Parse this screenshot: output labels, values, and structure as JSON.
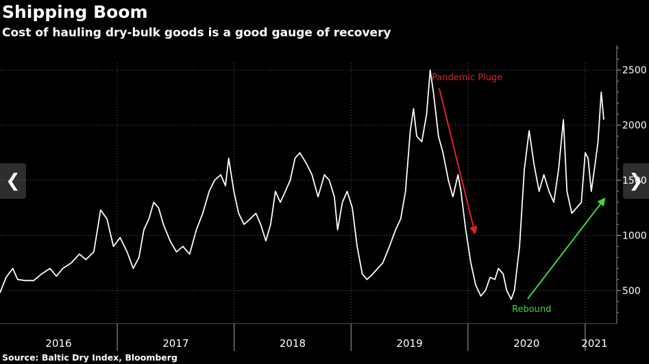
{
  "header": {
    "title": "Shipping Boom",
    "subtitle": "Cost of hauling dry-bulk goods is a good gauge of recovery"
  },
  "footer": {
    "source": "Source: Baltic Dry Index, Bloomberg"
  },
  "nav": {
    "prev_icon": "chevron-left-icon",
    "next_icon": "chevron-right-icon"
  },
  "colors": {
    "background": "#000000",
    "line": "#ffffff",
    "grid": "#666666",
    "pandemic_arrow": "#e0212b",
    "rebound_arrow": "#3fd83f"
  },
  "chart_data": {
    "type": "line",
    "title": "Shipping Boom",
    "subtitle": "Cost of hauling dry-bulk goods is a good gauge of recovery",
    "x_axis": {
      "ticks": [
        "2016",
        "2017",
        "2018",
        "2019",
        "2020",
        "2021"
      ],
      "range": [
        "2016-01-01",
        "2021-02-28"
      ]
    },
    "y_axis": {
      "ticks": [
        500,
        1000,
        1500,
        2000,
        2500
      ],
      "range": [
        200,
        2750
      ],
      "position": "right"
    },
    "grid": true,
    "series": [
      {
        "values": [
          [
            "2016-01-01",
            480
          ],
          [
            "2016-01-20",
            620
          ],
          [
            "2016-02-10",
            700
          ],
          [
            "2016-02-25",
            600
          ],
          [
            "2016-03-20",
            590
          ],
          [
            "2016-04-15",
            590
          ],
          [
            "2016-05-10",
            650
          ],
          [
            "2016-06-05",
            700
          ],
          [
            "2016-06-25",
            630
          ],
          [
            "2016-07-15",
            700
          ],
          [
            "2016-08-10",
            750
          ],
          [
            "2016-09-05",
            830
          ],
          [
            "2016-09-25",
            780
          ],
          [
            "2016-10-20",
            850
          ],
          [
            "2016-11-10",
            1230
          ],
          [
            "2016-11-30",
            1150
          ],
          [
            "2016-12-20",
            900
          ],
          [
            "2017-01-10",
            980
          ],
          [
            "2017-02-01",
            850
          ],
          [
            "2017-02-20",
            700
          ],
          [
            "2017-03-10",
            800
          ],
          [
            "2017-03-25",
            1050
          ],
          [
            "2017-04-10",
            1150
          ],
          [
            "2017-04-25",
            1300
          ],
          [
            "2017-05-10",
            1250
          ],
          [
            "2017-05-25",
            1100
          ],
          [
            "2017-06-15",
            950
          ],
          [
            "2017-07-05",
            850
          ],
          [
            "2017-07-25",
            900
          ],
          [
            "2017-08-15",
            830
          ],
          [
            "2017-09-05",
            1050
          ],
          [
            "2017-09-25",
            1200
          ],
          [
            "2017-10-15",
            1400
          ],
          [
            "2017-11-01",
            1500
          ],
          [
            "2017-11-20",
            1550
          ],
          [
            "2017-12-05",
            1450
          ],
          [
            "2017-12-15",
            1700
          ],
          [
            "2017-12-31",
            1400
          ],
          [
            "2018-01-15",
            1200
          ],
          [
            "2018-02-01",
            1100
          ],
          [
            "2018-02-20",
            1150
          ],
          [
            "2018-03-10",
            1200
          ],
          [
            "2018-03-25",
            1100
          ],
          [
            "2018-04-10",
            950
          ],
          [
            "2018-04-25",
            1100
          ],
          [
            "2018-05-10",
            1400
          ],
          [
            "2018-05-25",
            1300
          ],
          [
            "2018-06-10",
            1400
          ],
          [
            "2018-06-25",
            1500
          ],
          [
            "2018-07-10",
            1700
          ],
          [
            "2018-07-25",
            1750
          ],
          [
            "2018-08-15",
            1650
          ],
          [
            "2018-09-01",
            1550
          ],
          [
            "2018-09-20",
            1350
          ],
          [
            "2018-10-10",
            1550
          ],
          [
            "2018-10-25",
            1500
          ],
          [
            "2018-11-10",
            1350
          ],
          [
            "2018-11-20",
            1050
          ],
          [
            "2018-12-05",
            1300
          ],
          [
            "2018-12-20",
            1400
          ],
          [
            "2019-01-05",
            1250
          ],
          [
            "2019-01-20",
            900
          ],
          [
            "2019-02-05",
            650
          ],
          [
            "2019-02-20",
            600
          ],
          [
            "2019-03-10",
            650
          ],
          [
            "2019-03-25",
            700
          ],
          [
            "2019-04-10",
            750
          ],
          [
            "2019-05-01",
            900
          ],
          [
            "2019-05-20",
            1050
          ],
          [
            "2019-06-05",
            1150
          ],
          [
            "2019-06-20",
            1400
          ],
          [
            "2019-07-05",
            1950
          ],
          [
            "2019-07-15",
            2150
          ],
          [
            "2019-07-25",
            1900
          ],
          [
            "2019-08-10",
            1850
          ],
          [
            "2019-08-25",
            2100
          ],
          [
            "2019-09-05",
            2500
          ],
          [
            "2019-09-15",
            2300
          ],
          [
            "2019-10-01",
            1900
          ],
          [
            "2019-10-15",
            1750
          ],
          [
            "2019-11-01",
            1500
          ],
          [
            "2019-11-15",
            1350
          ],
          [
            "2019-12-01",
            1550
          ],
          [
            "2019-12-10",
            1400
          ],
          [
            "2019-12-25",
            1050
          ],
          [
            "2020-01-10",
            750
          ],
          [
            "2020-01-25",
            550
          ],
          [
            "2020-02-10",
            450
          ],
          [
            "2020-02-25",
            500
          ],
          [
            "2020-03-10",
            620
          ],
          [
            "2020-03-25",
            600
          ],
          [
            "2020-04-05",
            700
          ],
          [
            "2020-04-20",
            650
          ],
          [
            "2020-05-01",
            500
          ],
          [
            "2020-05-15",
            420
          ],
          [
            "2020-05-25",
            500
          ],
          [
            "2020-06-10",
            900
          ],
          [
            "2020-06-25",
            1600
          ],
          [
            "2020-07-10",
            1950
          ],
          [
            "2020-07-25",
            1650
          ],
          [
            "2020-08-10",
            1400
          ],
          [
            "2020-08-25",
            1550
          ],
          [
            "2020-09-10",
            1400
          ],
          [
            "2020-09-25",
            1300
          ],
          [
            "2020-10-10",
            1600
          ],
          [
            "2020-10-25",
            2050
          ],
          [
            "2020-11-05",
            1400
          ],
          [
            "2020-11-20",
            1200
          ],
          [
            "2020-12-05",
            1250
          ],
          [
            "2020-12-20",
            1300
          ],
          [
            "2021-01-01",
            1750
          ],
          [
            "2021-01-10",
            1700
          ],
          [
            "2021-01-20",
            1400
          ],
          [
            "2021-02-01",
            1650
          ],
          [
            "2021-02-10",
            1850
          ],
          [
            "2021-02-20",
            2300
          ],
          [
            "2021-02-28",
            2050
          ]
        ]
      }
    ],
    "annotations": [
      {
        "text": "Pandemic Pluge",
        "color": "#e0212b"
      },
      {
        "text": "Rebound",
        "color": "#3fd83f"
      }
    ]
  }
}
